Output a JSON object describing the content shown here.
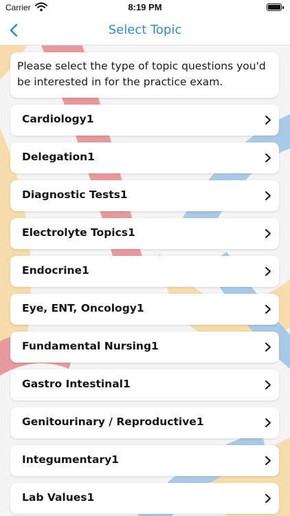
{
  "status_bar": {
    "carrier": "Carrier",
    "time": "8:19 PM"
  },
  "nav": {
    "title": "Select Topic",
    "back_icon": "chevron-left-icon",
    "accent_color": "#2d8ccf"
  },
  "intro": {
    "text": "Please select the type of topic questions you'd be interested in for the practice exam."
  },
  "topics": [
    {
      "label": "Cardiology1"
    },
    {
      "label": "Delegation1"
    },
    {
      "label": "Diagnostic Tests1"
    },
    {
      "label": "Electrolyte Topics1"
    },
    {
      "label": "Endocrine1"
    },
    {
      "label": "Eye, ENT, Oncology1"
    },
    {
      "label": "Fundamental Nursing1"
    },
    {
      "label": "Gastro Intestinal1"
    },
    {
      "label": "Genitourinary / Reproductive1"
    },
    {
      "label": "Integumentary1"
    },
    {
      "label": "Lab Values1"
    }
  ],
  "colors": {
    "background": "#f4f4f4",
    "stripe_red": "#e79a9e",
    "stripe_yellow": "#f6dcaa",
    "stripe_blue": "#a9cae6"
  }
}
